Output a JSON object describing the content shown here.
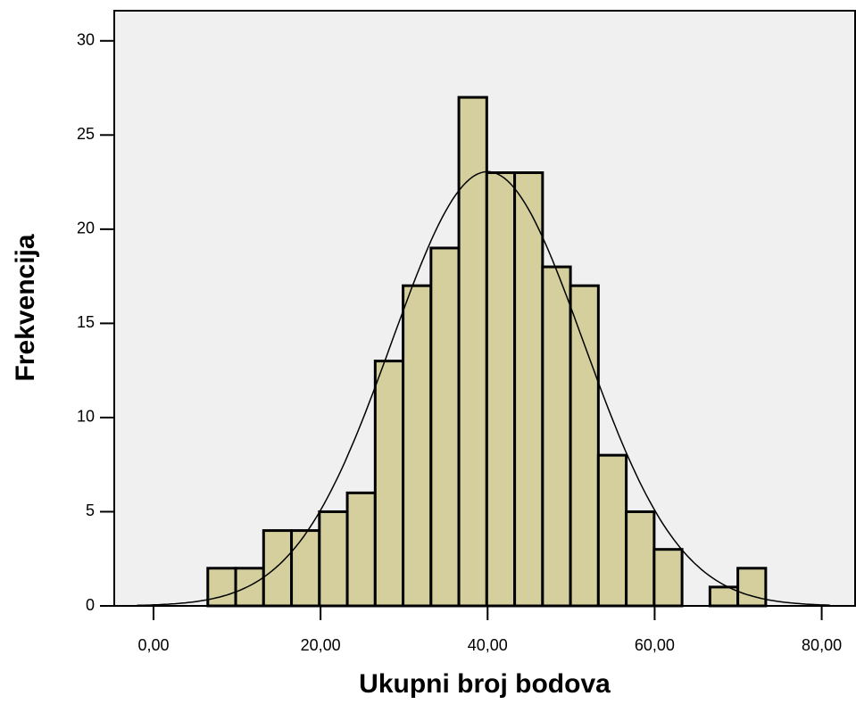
{
  "chart_data": {
    "type": "histogram",
    "x_label": "Ukupni broj bodova",
    "y_label": "Frekvencija",
    "bins": [
      6.5,
      9.84,
      13.18,
      16.52,
      19.86,
      23.2,
      26.54,
      29.88,
      33.22,
      36.56,
      39.9,
      43.24,
      46.58,
      49.92,
      53.26,
      56.6,
      59.94,
      63.28,
      66.62,
      69.96,
      73.3
    ],
    "values": [
      2,
      2,
      4,
      4,
      5,
      6,
      13,
      17,
      19,
      27,
      23,
      23,
      18,
      17,
      8,
      5,
      3,
      0,
      1,
      2
    ],
    "color": "#d4cf9c",
    "edge_color": "#000000",
    "normal_curve": {
      "mean": 40,
      "sd": 11.5
    },
    "xlim": [
      -4.7,
      84
    ],
    "ylim": [
      0,
      31.6
    ],
    "xticks": [
      {
        "value": 0,
        "label": "0,00"
      },
      {
        "value": 20,
        "label": "20,00"
      },
      {
        "value": 40,
        "label": "40,00"
      },
      {
        "value": 60,
        "label": "60,00"
      },
      {
        "value": 80,
        "label": "80,00"
      }
    ],
    "yticks": [
      0,
      5,
      10,
      15,
      20,
      25,
      30
    ]
  }
}
